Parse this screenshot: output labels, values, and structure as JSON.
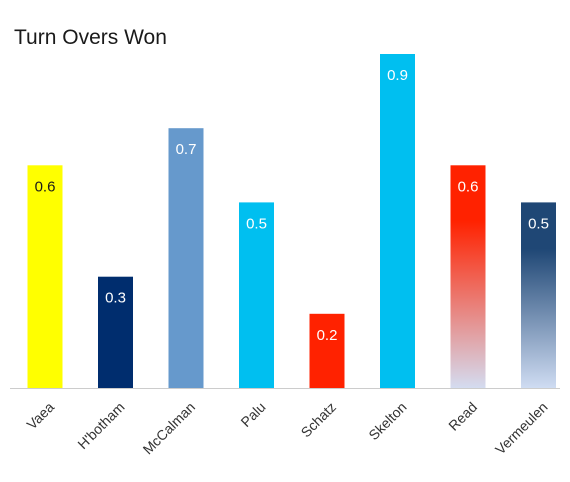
{
  "chart_data": {
    "type": "bar",
    "title": "Turn Overs Won",
    "xlabel": "",
    "ylabel": "",
    "categories": [
      "Vaea",
      "H'botham",
      "McCalman",
      "Palu",
      "Schatz",
      "Skelton",
      "Read",
      "Vermeulen"
    ],
    "values": [
      0.6,
      0.3,
      0.7,
      0.5,
      0.2,
      0.9,
      0.6,
      0.5
    ],
    "value_labels": [
      "0.6",
      "0.3",
      "0.7",
      "0.5",
      "0.2",
      "0.9",
      "0.6",
      "0.5"
    ],
    "ylim": [
      0,
      0.9
    ],
    "grid": false,
    "legend": "none",
    "colors": [
      {
        "top": "#ffff00",
        "bottom": "#ffff00",
        "label": "#1a1a1a"
      },
      {
        "top": "#002d6e",
        "bottom": "#002d6e",
        "label": "#ffffff"
      },
      {
        "top": "#6699cc",
        "bottom": "#6699cc",
        "label": "#ffffff"
      },
      {
        "top": "#00bff0",
        "bottom": "#00bff0",
        "label": "#ffffff"
      },
      {
        "top": "#ff2200",
        "bottom": "#ff2200",
        "label": "#ffffff"
      },
      {
        "top": "#00bff0",
        "bottom": "#00bff0",
        "label": "#ffffff"
      },
      {
        "top": "#ff2200",
        "bottom": "#d4dcf0",
        "label": "#ffffff"
      },
      {
        "top": "#1f4775",
        "bottom": "#cfdcf2",
        "label": "#ffffff"
      }
    ],
    "axis_color": "#cccccc"
  }
}
